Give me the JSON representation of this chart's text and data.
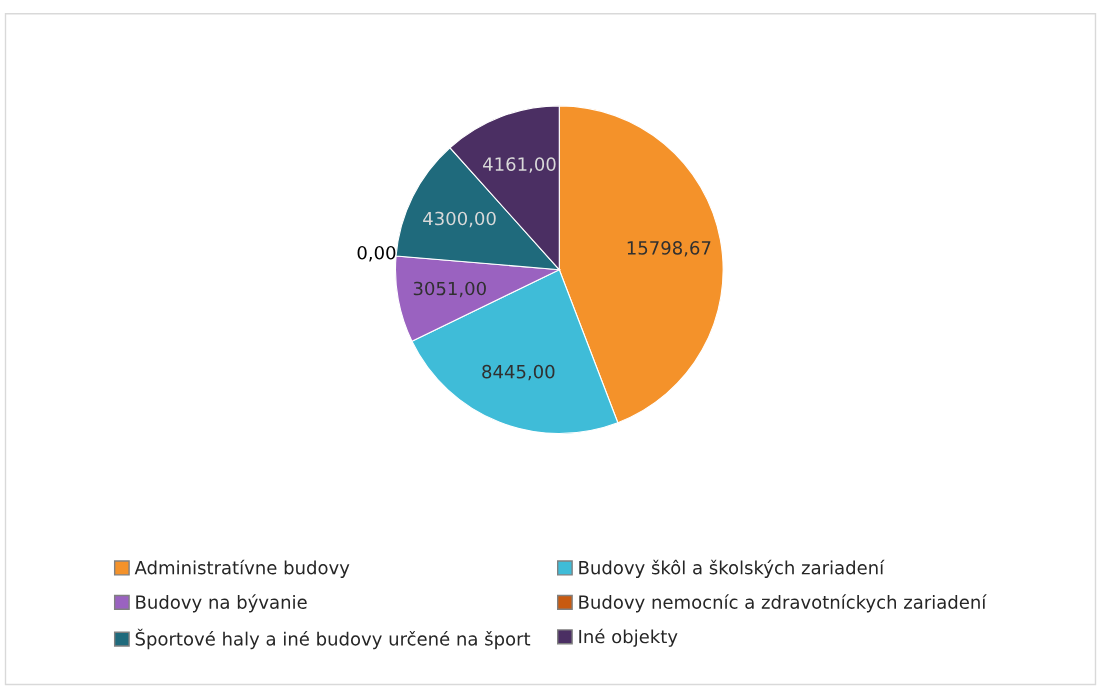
{
  "chart_data": {
    "type": "pie",
    "categories": [
      "Administratívne budovy",
      "Budovy škôl a školských zariadení",
      "Budovy na bývanie",
      "Budovy nemocníc a zdravotníckych zariadení",
      "Športové haly a iné budovy určené na šport",
      "Iné objekty"
    ],
    "values": [
      15798.67,
      8445.0,
      3051.0,
      0.0,
      4300.0,
      4161.0
    ],
    "value_labels": [
      "15798,67",
      "8445,00",
      "3051,00",
      "0,00",
      "4300,00",
      "4161,00"
    ],
    "colors": [
      "#f4922a",
      "#3fbcd8",
      "#9a62c0",
      "#c85a10",
      "#1f6a7c",
      "#4b2f63"
    ],
    "legend": "bottom"
  }
}
